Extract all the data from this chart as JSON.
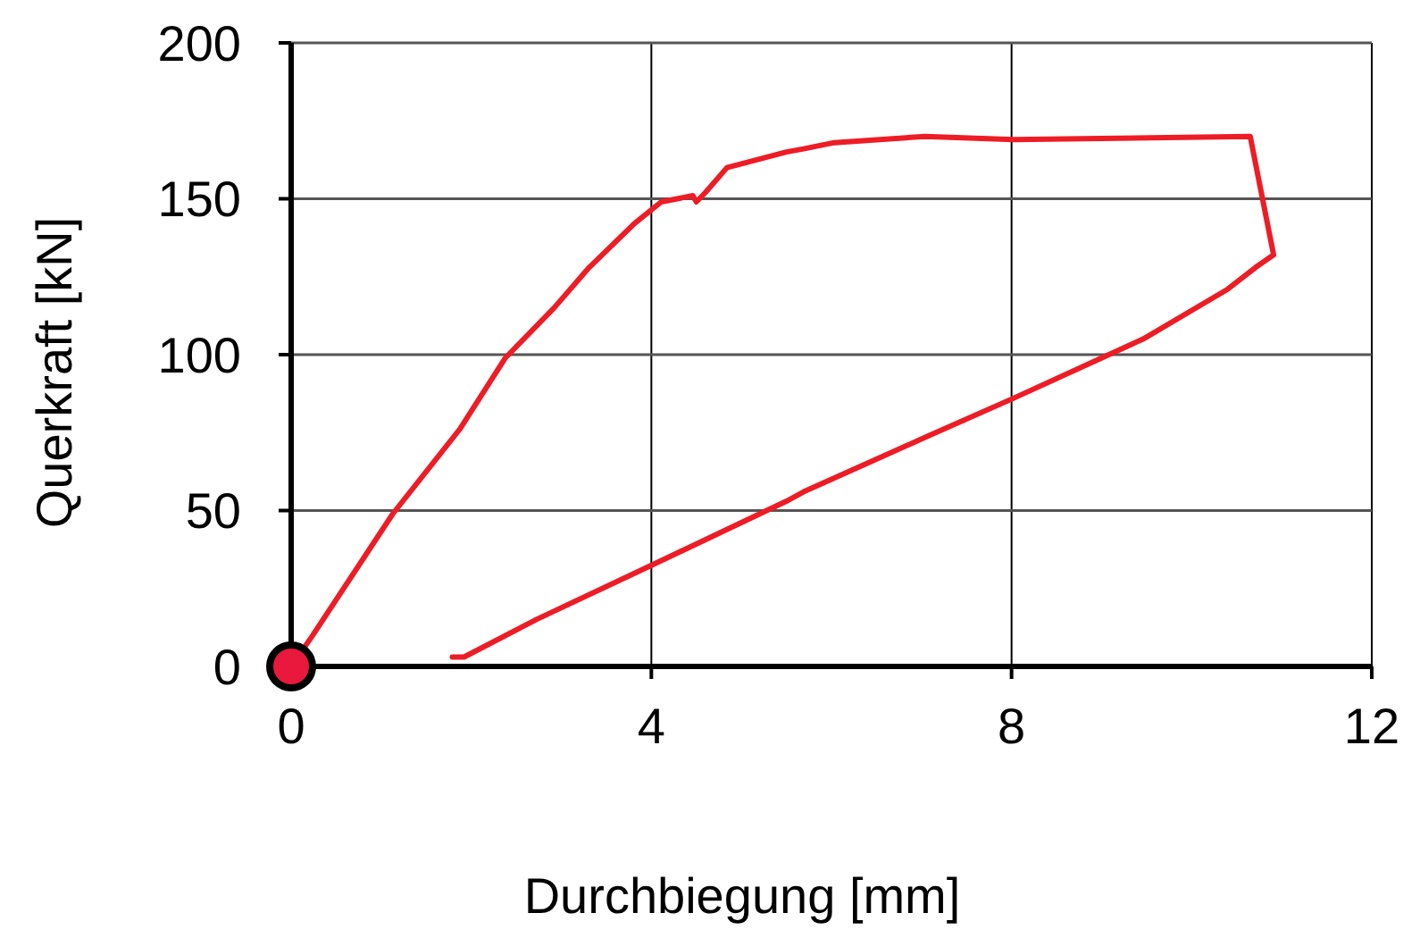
{
  "chart_data": {
    "type": "line",
    "xlabel": "Durchbiegung [mm]",
    "ylabel": "Querkraft [kN]",
    "xlim": [
      0,
      12
    ],
    "xticks": [
      0,
      4,
      8,
      12
    ],
    "ylim": [
      0,
      200
    ],
    "yticks": [
      0,
      50,
      100,
      150,
      200
    ],
    "grid": true,
    "series": [
      {
        "color": "#ee1c25",
        "marker": "none",
        "x": [
          0,
          0.24,
          1.13,
          1.87,
          2.38,
          2.92,
          3.31,
          3.81,
          4.11,
          4.46,
          4.5,
          4.6,
          4.84,
          5.5,
          5.69,
          6.03,
          7.04,
          8.02,
          10.65,
          10.91,
          10.71,
          10.4,
          9.46,
          8.02,
          7.08,
          5.69,
          5.5,
          3.97,
          2.72,
          1.92,
          1.79
        ],
        "values": [
          0,
          10,
          49,
          76,
          99,
          115,
          128,
          142,
          149,
          151,
          149,
          152,
          160,
          165,
          166,
          168,
          170,
          169,
          170,
          132,
          128,
          121,
          105,
          86,
          74,
          56,
          53,
          32,
          15,
          3,
          3
        ]
      },
      {
        "type": "scatter",
        "color": "#e8193c",
        "marker": "circle",
        "x": [
          0
        ],
        "values": [
          0
        ]
      }
    ]
  }
}
